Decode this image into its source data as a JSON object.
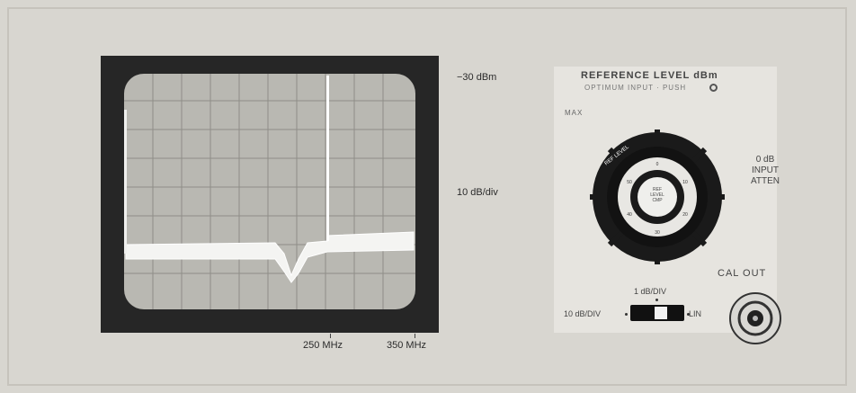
{
  "scope": {
    "ref_level": "−30 dBm",
    "scale": "10 dB/div",
    "freq_markers": [
      "250 MHz",
      "350 MHz"
    ]
  },
  "panel": {
    "title": "REFERENCE LEVEL dBm",
    "subtitle": "OPTIMUM INPUT · PUSH",
    "max_label": "MAX",
    "dial_label": "REF LEVEL",
    "dial_center": [
      "REF",
      "LEVEL",
      "CMP"
    ],
    "atten_label": [
      "0 dB",
      "INPUT",
      "ATTEN"
    ],
    "cal_out": "CAL OUT",
    "switch_top": "1 dB/DIV",
    "switch_left": "10 dB/DIV",
    "switch_right": "LIN"
  }
}
